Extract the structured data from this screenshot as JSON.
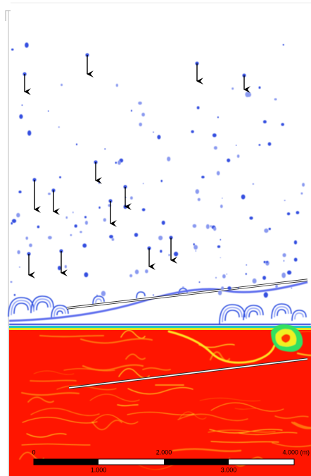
{
  "scale_bar": {
    "top_labels": [
      "0",
      "2.000",
      "4.000 (m)"
    ],
    "bottom_labels": [
      "1.000",
      "3.000"
    ]
  }
}
